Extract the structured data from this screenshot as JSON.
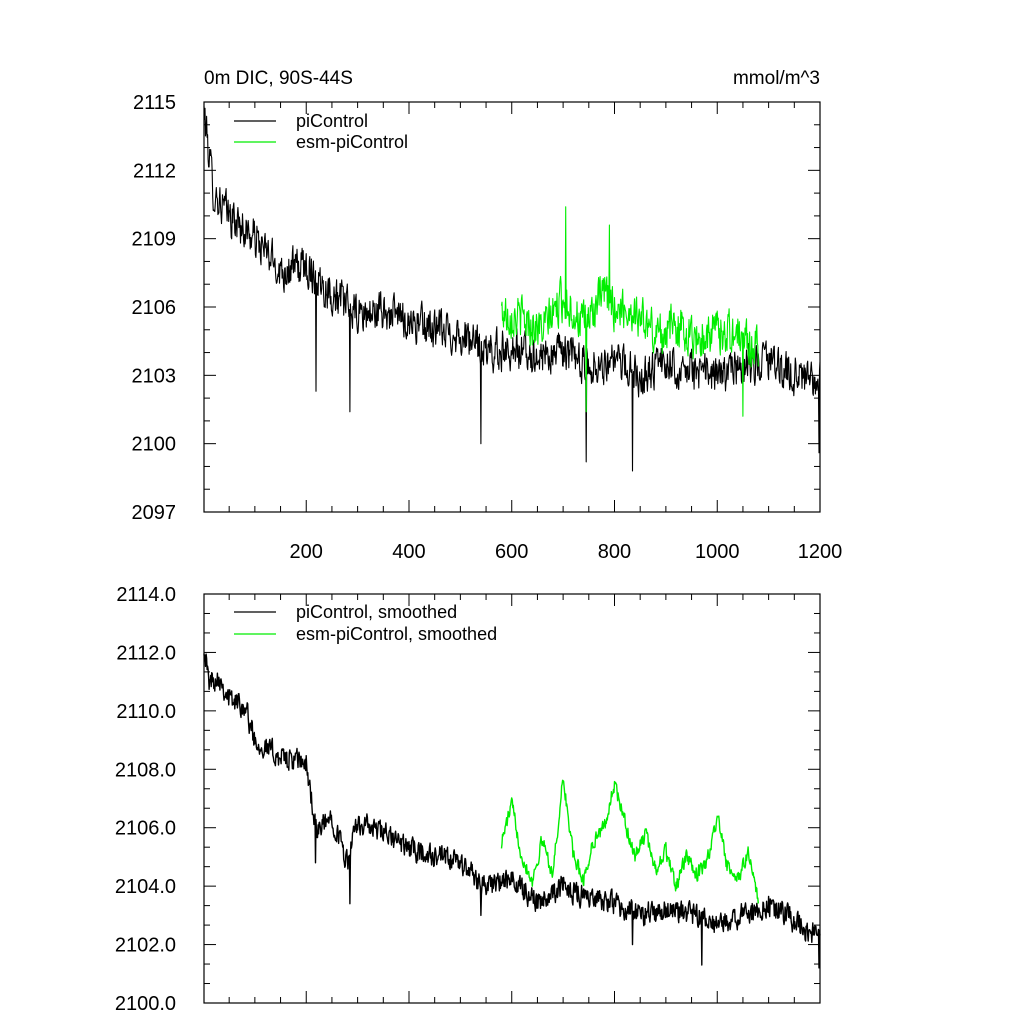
{
  "chart_data": [
    {
      "type": "line",
      "title": "0m DIC, 90S-44S",
      "units": "mmol/m^3",
      "xlim": [
        1,
        1200
      ],
      "ylim": [
        2097,
        2115
      ],
      "x_ticks": [
        200,
        400,
        600,
        800,
        1000,
        1200
      ],
      "x_tick_labels": [
        "200",
        "400",
        "600",
        "800",
        "1000",
        "1200"
      ],
      "y_ticks": [
        2097,
        2100,
        2103,
        2106,
        2109,
        2112,
        2115
      ],
      "y_tick_labels": [
        "2097",
        "2100",
        "2103",
        "2106",
        "2109",
        "2112",
        "2115"
      ],
      "legend_position": "top-left",
      "series": [
        {
          "name": "piControl",
          "color": "#000000",
          "anchor_x": [
            1,
            20,
            50,
            100,
            150,
            200,
            250,
            300,
            350,
            400,
            450,
            500,
            550,
            600,
            650,
            700,
            750,
            800,
            850,
            900,
            950,
            1000,
            1050,
            1100,
            1150,
            1200
          ],
          "anchor_y": [
            2114.6,
            2111.0,
            2110.0,
            2109.0,
            2107.6,
            2107.8,
            2106.6,
            2105.6,
            2105.8,
            2105.4,
            2105.0,
            2104.8,
            2104.0,
            2104.2,
            2103.8,
            2104.0,
            2103.4,
            2103.6,
            2103.0,
            2103.5,
            2103.2,
            2103.0,
            2103.4,
            2103.6,
            2103.0,
            2102.6
          ],
          "noise": 1.2,
          "spikes": [
            [
              219,
              2102.3
            ],
            [
              285,
              2101.4
            ],
            [
              540,
              2100.0
            ],
            [
              745,
              2099.2
            ],
            [
              835,
              2098.8
            ],
            [
              1198,
              2099.6
            ]
          ]
        },
        {
          "name": "esm-piControl",
          "color": "#00ee00",
          "anchor_x": [
            580,
            620,
            660,
            700,
            740,
            780,
            800,
            840,
            880,
            920,
            960,
            1000,
            1040,
            1080
          ],
          "anchor_y": [
            2105.8,
            2105.5,
            2105.0,
            2106.4,
            2105.2,
            2106.6,
            2106.0,
            2105.8,
            2104.8,
            2105.2,
            2104.6,
            2105.0,
            2104.8,
            2104.2
          ],
          "noise": 1.3,
          "spikes": [
            [
              705,
              2110.4
            ],
            [
              790,
              2109.6
            ],
            [
              745,
              2101.4
            ],
            [
              1050,
              2101.2
            ]
          ]
        }
      ]
    },
    {
      "type": "line",
      "title": "",
      "xlim": [
        1,
        1200
      ],
      "ylim": [
        2100,
        2114
      ],
      "x_ticks": [
        200,
        400,
        600,
        800,
        1000,
        1200
      ],
      "y_ticks": [
        2100,
        2102,
        2104,
        2106,
        2108,
        2110,
        2112,
        2114
      ],
      "y_tick_labels": [
        "2100.0",
        "2102.0",
        "2104.0",
        "2106.0",
        "2108.0",
        "2110.0",
        "2112.0",
        "2114.0"
      ],
      "legend_position": "top-left",
      "series": [
        {
          "name": "piControl, smoothed",
          "color": "#000000",
          "anchor_x": [
            1,
            10,
            30,
            50,
            80,
            100,
            150,
            200,
            220,
            250,
            280,
            300,
            350,
            400,
            450,
            500,
            550,
            600,
            650,
            700,
            750,
            800,
            850,
            900,
            950,
            1000,
            1050,
            1100,
            1150,
            1200
          ],
          "anchor_y": [
            2112.3,
            2111.0,
            2111.2,
            2110.4,
            2110.2,
            2109.0,
            2108.4,
            2108.2,
            2105.8,
            2106.4,
            2104.8,
            2106.2,
            2105.8,
            2105.3,
            2105.0,
            2104.8,
            2104.0,
            2104.2,
            2103.5,
            2104.0,
            2103.6,
            2103.4,
            2103.0,
            2103.2,
            2103.0,
            2102.6,
            2103.0,
            2103.4,
            2102.8,
            2102.2
          ],
          "noise": 0.55,
          "spikes": [
            [
              218,
              2104.8
            ],
            [
              285,
              2103.4
            ],
            [
              540,
              2103.0
            ],
            [
              835,
              2102.0
            ],
            [
              970,
              2101.3
            ],
            [
              1198,
              2101.2
            ]
          ]
        },
        {
          "name": "esm-piControl, smoothed",
          "color": "#00ee00",
          "anchor_x": [
            580,
            600,
            620,
            640,
            660,
            680,
            700,
            720,
            740,
            760,
            780,
            800,
            820,
            840,
            860,
            880,
            900,
            920,
            940,
            960,
            980,
            1000,
            1020,
            1040,
            1060,
            1080
          ],
          "anchor_y": [
            2105.5,
            2106.8,
            2105.0,
            2104.2,
            2105.6,
            2104.4,
            2107.7,
            2105.0,
            2104.2,
            2105.6,
            2106.0,
            2107.5,
            2106.2,
            2105.0,
            2105.8,
            2104.6,
            2105.2,
            2104.0,
            2105.0,
            2104.4,
            2104.8,
            2106.4,
            2104.6,
            2104.2,
            2105.2,
            2103.4
          ],
          "noise": 0.35,
          "spikes": []
        }
      ]
    }
  ]
}
